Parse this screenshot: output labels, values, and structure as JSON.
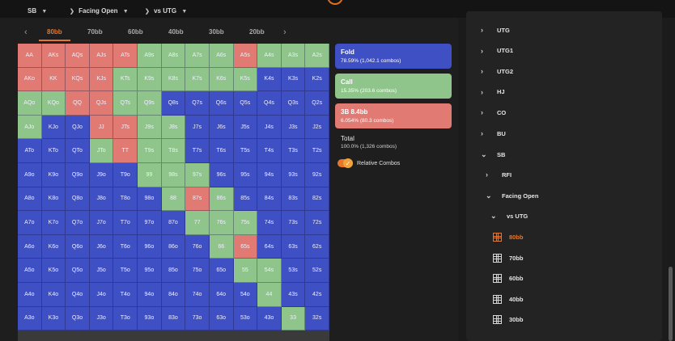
{
  "colors": {
    "fold": "#3f4fc4",
    "call": "#8fc58a",
    "raise": "#e07a72",
    "accent": "#e8762a"
  },
  "breadcrumb": [
    {
      "label": "SB",
      "icon": "chevron-down-icon"
    },
    {
      "label": "Facing Open",
      "icon": "chevron-right-icon"
    },
    {
      "label": "vs UTG",
      "icon": "chevron-down-icon"
    }
  ],
  "tabs": [
    "80bb",
    "70bb",
    "60bb",
    "40bb",
    "30bb",
    "20bb"
  ],
  "active_tab": 0,
  "legend": {
    "fold": {
      "title": "Fold",
      "sub": "78.59% (1,042.1 combos)"
    },
    "call": {
      "title": "Call",
      "sub": "15.35% (203.6 combos)"
    },
    "raise": {
      "title": "3B 8.4bb",
      "sub": "6.054% (80.3 combos)"
    },
    "total": {
      "title": "Total",
      "sub": "100.0% (1,326 combos)"
    },
    "toggle_label": "Relative Combos"
  },
  "grid": [
    [
      [
        "AA",
        "r"
      ],
      [
        "AKs",
        "r"
      ],
      [
        "AQs",
        "r"
      ],
      [
        "AJs",
        "r"
      ],
      [
        "ATs",
        "r"
      ],
      [
        "A9s",
        "c"
      ],
      [
        "A8s",
        "c"
      ],
      [
        "A7s",
        "c"
      ],
      [
        "A6s",
        "c"
      ],
      [
        "A5s",
        "r"
      ],
      [
        "A4s",
        "c"
      ],
      [
        "A3s",
        "c"
      ],
      [
        "A2s",
        "c"
      ]
    ],
    [
      [
        "AKo",
        "r"
      ],
      [
        "KK",
        "r"
      ],
      [
        "KQs",
        "r"
      ],
      [
        "KJs",
        "r"
      ],
      [
        "KTs",
        "c"
      ],
      [
        "K9s",
        "c"
      ],
      [
        "K8s",
        "c"
      ],
      [
        "K7s",
        "c"
      ],
      [
        "K6s",
        "c"
      ],
      [
        "K5s",
        "c"
      ],
      [
        "K4s",
        "f"
      ],
      [
        "K3s",
        "f"
      ],
      [
        "K2s",
        "f"
      ]
    ],
    [
      [
        "AQo",
        "c"
      ],
      [
        "KQo",
        "c"
      ],
      [
        "QQ",
        "r"
      ],
      [
        "QJs",
        "r"
      ],
      [
        "QTs",
        "c"
      ],
      [
        "Q9s",
        "c"
      ],
      [
        "Q8s",
        "f"
      ],
      [
        "Q7s",
        "f"
      ],
      [
        "Q6s",
        "f"
      ],
      [
        "Q5s",
        "f"
      ],
      [
        "Q4s",
        "f"
      ],
      [
        "Q3s",
        "f"
      ],
      [
        "Q2s",
        "f"
      ]
    ],
    [
      [
        "AJo",
        "c"
      ],
      [
        "KJo",
        "f"
      ],
      [
        "QJo",
        "f"
      ],
      [
        "JJ",
        "r"
      ],
      [
        "JTs",
        "r"
      ],
      [
        "J9s",
        "c"
      ],
      [
        "J8s",
        "c"
      ],
      [
        "J7s",
        "f"
      ],
      [
        "J6s",
        "f"
      ],
      [
        "J5s",
        "f"
      ],
      [
        "J4s",
        "f"
      ],
      [
        "J3s",
        "f"
      ],
      [
        "J2s",
        "f"
      ]
    ],
    [
      [
        "ATo",
        "f"
      ],
      [
        "KTo",
        "f"
      ],
      [
        "QTo",
        "f"
      ],
      [
        "JTo",
        "c"
      ],
      [
        "TT",
        "r"
      ],
      [
        "T9s",
        "c"
      ],
      [
        "T8s",
        "c"
      ],
      [
        "T7s",
        "f"
      ],
      [
        "T6s",
        "f"
      ],
      [
        "T5s",
        "f"
      ],
      [
        "T4s",
        "f"
      ],
      [
        "T3s",
        "f"
      ],
      [
        "T2s",
        "f"
      ]
    ],
    [
      [
        "A9o",
        "f"
      ],
      [
        "K9o",
        "f"
      ],
      [
        "Q9o",
        "f"
      ],
      [
        "J9o",
        "f"
      ],
      [
        "T9o",
        "f"
      ],
      [
        "99",
        "c"
      ],
      [
        "98s",
        "c"
      ],
      [
        "97s",
        "c"
      ],
      [
        "96s",
        "f"
      ],
      [
        "95s",
        "f"
      ],
      [
        "94s",
        "f"
      ],
      [
        "93s",
        "f"
      ],
      [
        "92s",
        "f"
      ]
    ],
    [
      [
        "A8o",
        "f"
      ],
      [
        "K8o",
        "f"
      ],
      [
        "Q8o",
        "f"
      ],
      [
        "J8o",
        "f"
      ],
      [
        "T8o",
        "f"
      ],
      [
        "98o",
        "f"
      ],
      [
        "88",
        "c"
      ],
      [
        "87s",
        "r"
      ],
      [
        "86s",
        "c"
      ],
      [
        "85s",
        "f"
      ],
      [
        "84s",
        "f"
      ],
      [
        "83s",
        "f"
      ],
      [
        "82s",
        "f"
      ]
    ],
    [
      [
        "A7o",
        "f"
      ],
      [
        "K7o",
        "f"
      ],
      [
        "Q7o",
        "f"
      ],
      [
        "J7o",
        "f"
      ],
      [
        "T7o",
        "f"
      ],
      [
        "97o",
        "f"
      ],
      [
        "87o",
        "f"
      ],
      [
        "77",
        "c"
      ],
      [
        "76s",
        "c"
      ],
      [
        "75s",
        "c"
      ],
      [
        "74s",
        "f"
      ],
      [
        "73s",
        "f"
      ],
      [
        "72s",
        "f"
      ]
    ],
    [
      [
        "A6o",
        "f"
      ],
      [
        "K6o",
        "f"
      ],
      [
        "Q6o",
        "f"
      ],
      [
        "J6o",
        "f"
      ],
      [
        "T6o",
        "f"
      ],
      [
        "96o",
        "f"
      ],
      [
        "86o",
        "f"
      ],
      [
        "76o",
        "f"
      ],
      [
        "66",
        "c"
      ],
      [
        "65s",
        "r"
      ],
      [
        "64s",
        "f"
      ],
      [
        "63s",
        "f"
      ],
      [
        "62s",
        "f"
      ]
    ],
    [
      [
        "A5o",
        "f"
      ],
      [
        "K5o",
        "f"
      ],
      [
        "Q5o",
        "f"
      ],
      [
        "J5o",
        "f"
      ],
      [
        "T5o",
        "f"
      ],
      [
        "95o",
        "f"
      ],
      [
        "85o",
        "f"
      ],
      [
        "75o",
        "f"
      ],
      [
        "65o",
        "f"
      ],
      [
        "55",
        "c"
      ],
      [
        "54s",
        "c"
      ],
      [
        "53s",
        "f"
      ],
      [
        "52s",
        "f"
      ]
    ],
    [
      [
        "A4o",
        "f"
      ],
      [
        "K4o",
        "f"
      ],
      [
        "Q4o",
        "f"
      ],
      [
        "J4o",
        "f"
      ],
      [
        "T4o",
        "f"
      ],
      [
        "94o",
        "f"
      ],
      [
        "84o",
        "f"
      ],
      [
        "74o",
        "f"
      ],
      [
        "64o",
        "f"
      ],
      [
        "54o",
        "f"
      ],
      [
        "44",
        "c"
      ],
      [
        "43s",
        "f"
      ],
      [
        "42s",
        "f"
      ]
    ],
    [
      [
        "A3o",
        "f"
      ],
      [
        "K3o",
        "f"
      ],
      [
        "Q3o",
        "f"
      ],
      [
        "J3o",
        "f"
      ],
      [
        "T3o",
        "f"
      ],
      [
        "93o",
        "f"
      ],
      [
        "83o",
        "f"
      ],
      [
        "73o",
        "f"
      ],
      [
        "63o",
        "f"
      ],
      [
        "53o",
        "f"
      ],
      [
        "43o",
        "f"
      ],
      [
        "33",
        "c"
      ],
      [
        "32s",
        "f"
      ]
    ]
  ],
  "sidebar": [
    {
      "label": "UTG",
      "icon": "chevron-right-icon",
      "level": 0
    },
    {
      "label": "UTG1",
      "icon": "chevron-right-icon",
      "level": 0
    },
    {
      "label": "UTG2",
      "icon": "chevron-right-icon",
      "level": 0
    },
    {
      "label": "HJ",
      "icon": "chevron-right-icon",
      "level": 0
    },
    {
      "label": "CO",
      "icon": "chevron-right-icon",
      "level": 0
    },
    {
      "label": "BU",
      "icon": "chevron-right-icon",
      "level": 0
    },
    {
      "label": "SB",
      "icon": "chevron-down-icon",
      "level": 0
    },
    {
      "label": "RFI",
      "icon": "chevron-right-icon",
      "level": 1
    },
    {
      "label": "Facing Open",
      "icon": "chevron-down-icon",
      "level": 1
    },
    {
      "label": "vs UTG",
      "icon": "chevron-down-icon",
      "level": 2
    },
    {
      "label": "80bb",
      "icon": "grid-icon",
      "level": 3,
      "active": true
    },
    {
      "label": "70bb",
      "icon": "grid-icon",
      "level": 3
    },
    {
      "label": "60bb",
      "icon": "grid-icon",
      "level": 3
    },
    {
      "label": "40bb",
      "icon": "grid-icon",
      "level": 3
    },
    {
      "label": "30bb",
      "icon": "grid-icon",
      "level": 3
    }
  ]
}
